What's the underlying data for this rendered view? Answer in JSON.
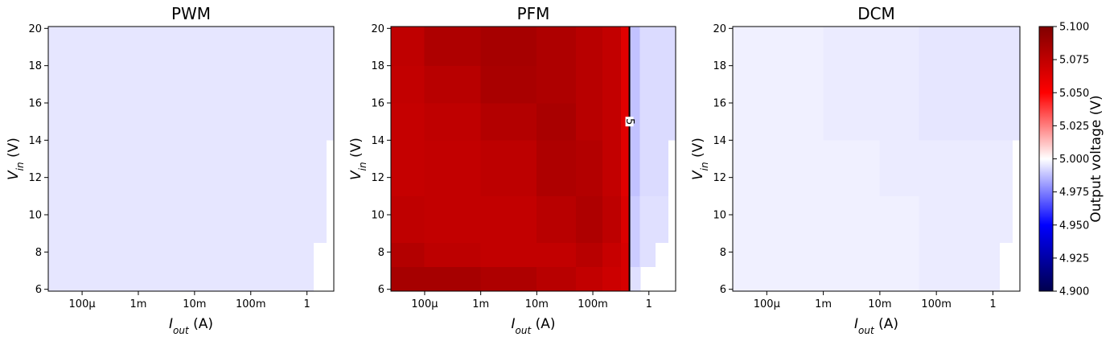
{
  "chart_data": [
    {
      "type": "heatmap",
      "title": "PWM",
      "xlog": true,
      "xlabel": [
        "I",
        "out",
        " (A)"
      ],
      "ylabel": [
        "V",
        "in",
        " (V)"
      ],
      "xlim": [
        2.5e-05,
        3
      ],
      "ylim": [
        5.9,
        20.1
      ],
      "xticks": [
        {
          "value": 0.0001,
          "label": "100µ"
        },
        {
          "value": 0.001,
          "label": "1m"
        },
        {
          "value": 0.01,
          "label": "10m"
        },
        {
          "value": 0.1,
          "label": "100m"
        },
        1
      ],
      "yticks": [
        6,
        8,
        10,
        12,
        14,
        16,
        18,
        20
      ],
      "x_edges": [
        2.5e-05,
        0.0001,
        0.001,
        0.01,
        0.05,
        0.15,
        0.32,
        0.45,
        0.7,
        1.3,
        2.2,
        3
      ],
      "y_edges": [
        5.9,
        7.2,
        8.5,
        11,
        14,
        16,
        18,
        20.1
      ],
      "values": [
        [
          4.995,
          4.995,
          4.995,
          4.995,
          4.995,
          4.995,
          4.995,
          4.995,
          4.995,
          null,
          null
        ],
        [
          4.995,
          4.995,
          4.995,
          4.995,
          4.995,
          4.995,
          4.995,
          4.995,
          4.995,
          null,
          null
        ],
        [
          4.995,
          4.995,
          4.995,
          4.995,
          4.995,
          4.995,
          4.995,
          4.995,
          4.995,
          4.995,
          null
        ],
        [
          4.995,
          4.995,
          4.995,
          4.995,
          4.995,
          4.995,
          4.995,
          4.995,
          4.995,
          4.995,
          null
        ],
        [
          4.995,
          4.995,
          4.995,
          4.995,
          4.995,
          4.995,
          4.995,
          4.995,
          4.995,
          4.995,
          4.995
        ],
        [
          4.995,
          4.995,
          4.995,
          4.995,
          4.995,
          4.995,
          4.995,
          4.995,
          4.995,
          4.995,
          4.995
        ],
        [
          4.995,
          4.995,
          4.995,
          4.995,
          4.995,
          4.995,
          4.995,
          4.995,
          4.995,
          4.995,
          4.995
        ]
      ]
    },
    {
      "type": "heatmap",
      "title": "PFM",
      "xlog": true,
      "xlabel": [
        "I",
        "out",
        " (A)"
      ],
      "ylabel": [
        "V",
        "in",
        " (V)"
      ],
      "xlim": [
        2.5e-05,
        3
      ],
      "ylim": [
        5.9,
        20.1
      ],
      "xticks": [
        {
          "value": 0.0001,
          "label": "100µ"
        },
        {
          "value": 0.001,
          "label": "1m"
        },
        {
          "value": 0.01,
          "label": "10m"
        },
        {
          "value": 0.1,
          "label": "100m"
        },
        1
      ],
      "yticks": [
        6,
        8,
        10,
        12,
        14,
        16,
        18,
        20
      ],
      "x_edges": [
        2.5e-05,
        0.0001,
        0.001,
        0.01,
        0.05,
        0.15,
        0.32,
        0.45,
        0.7,
        1.3,
        2.2,
        3
      ],
      "y_edges": [
        5.9,
        7.2,
        8.5,
        11,
        14,
        16,
        18,
        20.1
      ],
      "values": [
        [
          5.085,
          5.085,
          5.082,
          5.078,
          5.074,
          5.07,
          5.066,
          4.994,
          null,
          null,
          null
        ],
        [
          5.08,
          5.076,
          5.074,
          5.074,
          5.078,
          5.072,
          5.066,
          4.99,
          4.994,
          null,
          null
        ],
        [
          5.075,
          5.074,
          5.074,
          5.078,
          5.082,
          5.076,
          5.064,
          4.99,
          4.994,
          4.994,
          null
        ],
        [
          5.073,
          5.074,
          5.076,
          5.082,
          5.08,
          5.074,
          5.062,
          4.988,
          4.993,
          4.993,
          null
        ],
        [
          5.073,
          5.075,
          5.08,
          5.084,
          5.078,
          5.074,
          5.062,
          4.988,
          4.993,
          4.993,
          4.993
        ],
        [
          5.074,
          5.078,
          5.084,
          5.082,
          5.078,
          5.074,
          5.062,
          4.988,
          4.993,
          4.993,
          4.993
        ],
        [
          5.075,
          5.082,
          5.085,
          5.082,
          5.078,
          5.074,
          5.062,
          4.988,
          4.993,
          4.993,
          4.993
        ]
      ],
      "contour_level": 5
    },
    {
      "type": "heatmap",
      "title": "DCM",
      "xlog": true,
      "xlabel": [
        "I",
        "out",
        " (A)"
      ],
      "ylabel": [
        "V",
        "in",
        " (V)"
      ],
      "xlim": [
        2.5e-05,
        3
      ],
      "ylim": [
        5.9,
        20.1
      ],
      "xticks": [
        {
          "value": 0.0001,
          "label": "100µ"
        },
        {
          "value": 0.001,
          "label": "1m"
        },
        {
          "value": 0.01,
          "label": "10m"
        },
        {
          "value": 0.1,
          "label": "100m"
        },
        1
      ],
      "yticks": [
        6,
        8,
        10,
        12,
        14,
        16,
        18,
        20
      ],
      "x_edges": [
        2.5e-05,
        0.0001,
        0.001,
        0.01,
        0.05,
        0.15,
        0.32,
        0.45,
        0.7,
        1.3,
        2.2,
        3
      ],
      "y_edges": [
        5.9,
        7.2,
        8.5,
        11,
        14,
        16,
        18,
        20.1
      ],
      "values": [
        [
          4.997,
          4.997,
          4.997,
          4.997,
          4.996,
          4.996,
          4.996,
          4.996,
          4.996,
          null,
          null
        ],
        [
          4.997,
          4.997,
          4.997,
          4.997,
          4.996,
          4.996,
          4.996,
          4.996,
          4.996,
          null,
          null
        ],
        [
          4.997,
          4.997,
          4.997,
          4.997,
          4.996,
          4.996,
          4.996,
          4.996,
          4.996,
          4.996,
          null
        ],
        [
          4.997,
          4.997,
          4.997,
          4.996,
          4.996,
          4.996,
          4.996,
          4.996,
          4.996,
          4.996,
          null
        ],
        [
          4.997,
          4.997,
          4.996,
          4.996,
          4.995,
          4.995,
          4.995,
          4.995,
          4.995,
          4.995,
          4.995
        ],
        [
          4.997,
          4.997,
          4.996,
          4.996,
          4.995,
          4.995,
          4.995,
          4.995,
          4.995,
          4.995,
          4.995
        ],
        [
          4.997,
          4.997,
          4.996,
          4.996,
          4.995,
          4.995,
          4.995,
          4.995,
          4.995,
          4.995,
          4.995
        ]
      ]
    }
  ],
  "colorbar": {
    "label": "Output voltage (V)",
    "colormap": "seismic",
    "lim": [
      4.9,
      5.1
    ],
    "ticks": [
      {
        "value": 4.9,
        "label": "4.900"
      },
      {
        "value": 4.925,
        "label": "4.925"
      },
      {
        "value": 4.95,
        "label": "4.950"
      },
      {
        "value": 4.975,
        "label": "4.975"
      },
      {
        "value": 5,
        "label": "5.000"
      },
      {
        "value": 5.025,
        "label": "5.025"
      },
      {
        "value": 5.05,
        "label": "5.050"
      },
      {
        "value": 5.075,
        "label": "5.075"
      },
      {
        "value": 5.1,
        "label": "5.100"
      }
    ]
  }
}
